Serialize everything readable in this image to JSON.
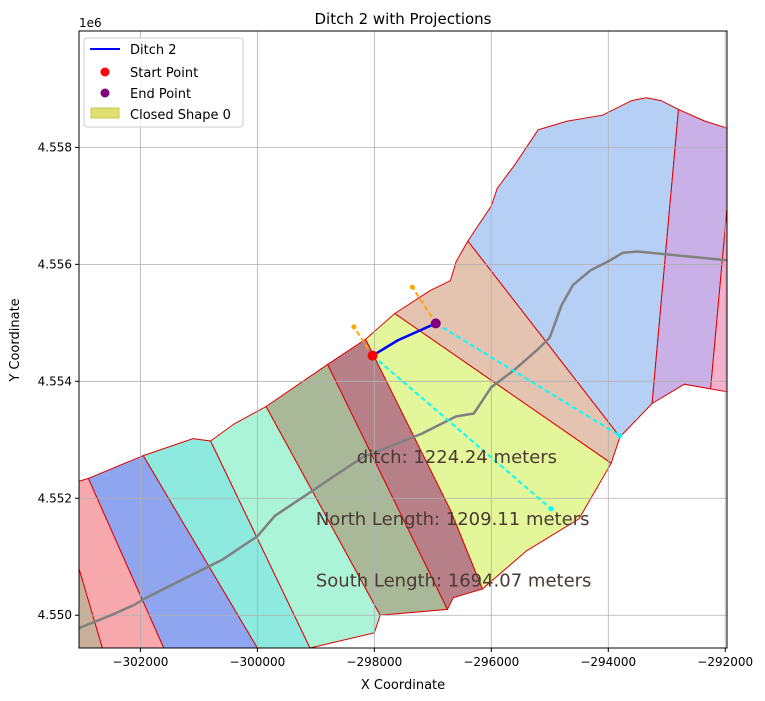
{
  "chart_data": {
    "type": "line",
    "title": "Ditch 2 with Projections",
    "xlabel": "X Coordinate",
    "ylabel": "Y Coordinate",
    "y_offset_label": "1e6",
    "xlim": [
      -303050,
      -291970
    ],
    "ylim": [
      4549440,
      4559990
    ],
    "x_ticks": [
      {
        "value": -302000,
        "label": "−302000"
      },
      {
        "value": -300000,
        "label": "−300000"
      },
      {
        "value": -298000,
        "label": "−298000"
      },
      {
        "value": -296000,
        "label": "−296000"
      },
      {
        "value": -294000,
        "label": "−294000"
      },
      {
        "value": -292000,
        "label": "−292000"
      }
    ],
    "y_ticks": [
      {
        "value": 4550000,
        "label": "4.550"
      },
      {
        "value": 4552000,
        "label": "4.552"
      },
      {
        "value": 4554000,
        "label": "4.554"
      },
      {
        "value": 4556000,
        "label": "4.556"
      },
      {
        "value": 4558000,
        "label": "4.558"
      }
    ],
    "grid": true,
    "legend_position": "top-left",
    "legend": [
      {
        "label": "Ditch 2",
        "kind": "line",
        "color": "#0000ff"
      },
      {
        "label": "Start Point",
        "kind": "point",
        "color": "#ff0000"
      },
      {
        "label": "End Point",
        "kind": "point",
        "color": "#800080"
      },
      {
        "label": "Closed Shape 0",
        "kind": "patch",
        "color": "#e0e070"
      }
    ],
    "regions": [
      {
        "id": "region-a",
        "color": "#c8b09a",
        "points": [
          [
            -303050,
            4550800
          ],
          [
            -302650,
            4549440
          ],
          [
            -303050,
            4549440
          ]
        ]
      },
      {
        "id": "region-b",
        "color": "#f7a8ad",
        "points": [
          [
            -303050,
            4552290
          ],
          [
            -302890,
            4552340
          ],
          [
            -301600,
            4549440
          ],
          [
            -302650,
            4549440
          ],
          [
            -303050,
            4550800
          ]
        ]
      },
      {
        "id": "region-c",
        "color": "#8fa5ef",
        "points": [
          [
            -302890,
            4552340
          ],
          [
            -301950,
            4552730
          ],
          [
            -300000,
            4549440
          ],
          [
            -301600,
            4549440
          ]
        ]
      },
      {
        "id": "region-d",
        "color": "#8eeadf",
        "points": [
          [
            -301950,
            4552730
          ],
          [
            -301100,
            4553020
          ],
          [
            -300800,
            4552980
          ],
          [
            -299100,
            4549440
          ],
          [
            -300000,
            4549440
          ]
        ]
      },
      {
        "id": "region-e",
        "color": "#acf4d8",
        "points": [
          [
            -300800,
            4552980
          ],
          [
            -300400,
            4553270
          ],
          [
            -299850,
            4553570
          ],
          [
            -297900,
            4550000
          ],
          [
            -298000,
            4549700
          ],
          [
            -299100,
            4549440
          ]
        ]
      },
      {
        "id": "region-f",
        "color": "#a8b898",
        "points": [
          [
            -299850,
            4553570
          ],
          [
            -298800,
            4554290
          ],
          [
            -296750,
            4550100
          ],
          [
            -297900,
            4550000
          ]
        ]
      },
      {
        "id": "region-g",
        "color": "#b77f88",
        "points": [
          [
            -298800,
            4554290
          ],
          [
            -298150,
            4554720
          ],
          [
            -296700,
            4551800
          ],
          [
            -296150,
            4550450
          ],
          [
            -296650,
            4550300
          ],
          [
            -296750,
            4550100
          ]
        ]
      },
      {
        "id": "region-h",
        "color": "#e3f79a",
        "points": [
          [
            -298150,
            4554720
          ],
          [
            -297650,
            4555160
          ],
          [
            -293950,
            4552600
          ],
          [
            -294500,
            4551650
          ],
          [
            -295400,
            4551100
          ],
          [
            -296150,
            4550450
          ],
          [
            -296700,
            4551800
          ]
        ]
      },
      {
        "id": "region-i",
        "color": "#e4c3b0",
        "points": [
          [
            -297650,
            4555160
          ],
          [
            -297050,
            4555550
          ],
          [
            -296700,
            4555720
          ],
          [
            -296600,
            4556050
          ],
          [
            -296400,
            4556400
          ],
          [
            -293800,
            4553050
          ],
          [
            -293950,
            4552600
          ]
        ]
      },
      {
        "id": "region-j",
        "color": "#b6d0f5",
        "points": [
          [
            -296400,
            4556400
          ],
          [
            -296000,
            4557000
          ],
          [
            -295900,
            4557300
          ],
          [
            -295600,
            4557700
          ],
          [
            -295200,
            4558300
          ],
          [
            -294700,
            4558450
          ],
          [
            -294100,
            4558550
          ],
          [
            -293600,
            4558800
          ],
          [
            -293350,
            4558850
          ],
          [
            -293100,
            4558800
          ],
          [
            -292800,
            4558650
          ],
          [
            -293250,
            4553620
          ],
          [
            -293800,
            4553050
          ]
        ]
      },
      {
        "id": "region-k",
        "color": "#c9b0e6",
        "points": [
          [
            -292800,
            4558650
          ],
          [
            -292350,
            4558450
          ],
          [
            -291970,
            4558330
          ],
          [
            -291970,
            4556950
          ],
          [
            -292250,
            4553870
          ],
          [
            -292700,
            4553950
          ],
          [
            -293250,
            4553620
          ]
        ]
      },
      {
        "id": "region-l",
        "color": "#f5b0cd",
        "points": [
          [
            -291970,
            4556950
          ],
          [
            -292250,
            4553870
          ],
          [
            -291970,
            4553820
          ]
        ]
      }
    ],
    "road": [
      [
        -303050,
        4549780
      ],
      [
        -302500,
        4550000
      ],
      [
        -302100,
        4550180
      ],
      [
        -301900,
        4550300
      ],
      [
        -301500,
        4550500
      ],
      [
        -301100,
        4550700
      ],
      [
        -300600,
        4550950
      ],
      [
        -300000,
        4551350
      ],
      [
        -299700,
        4551700
      ],
      [
        -299100,
        4552100
      ],
      [
        -298700,
        4552370
      ],
      [
        -298200,
        4552700
      ],
      [
        -297700,
        4552900
      ],
      [
        -297200,
        4553100
      ],
      [
        -296800,
        4553300
      ],
      [
        -296600,
        4553400
      ],
      [
        -296300,
        4553450
      ],
      [
        -296000,
        4553900
      ],
      [
        -295600,
        4554200
      ],
      [
        -295200,
        4554550
      ],
      [
        -295000,
        4554750
      ],
      [
        -294800,
        4555300
      ],
      [
        -294600,
        4555650
      ],
      [
        -294300,
        4555900
      ],
      [
        -294000,
        4556050
      ],
      [
        -293750,
        4556200
      ],
      [
        -293500,
        4556220
      ],
      [
        -291970,
        4556070
      ]
    ],
    "ditch": [
      [
        -298030,
        4554440
      ],
      [
        -297600,
        4554700
      ],
      [
        -296950,
        4554990
      ]
    ],
    "start_point": [
      -298030,
      4554440
    ],
    "end_point": [
      -296950,
      4554990
    ],
    "projections": [
      {
        "kind": "orange",
        "points": [
          [
            -298030,
            4554440
          ],
          [
            -298350,
            4554930
          ]
        ]
      },
      {
        "kind": "orange",
        "points": [
          [
            -296950,
            4554990
          ],
          [
            -297350,
            4555610
          ]
        ]
      },
      {
        "kind": "cyan",
        "points": [
          [
            -298030,
            4554440
          ],
          [
            -294980,
            4551820
          ]
        ]
      },
      {
        "kind": "cyan",
        "points": [
          [
            -296950,
            4554990
          ],
          [
            -293800,
            4553070
          ]
        ]
      }
    ],
    "annotations": [
      {
        "label": "ditch: 1224.24 meters",
        "x": -298300,
        "y": 4552600
      },
      {
        "label": "North Length: 1209.11 meters",
        "x": -299000,
        "y": 4551540
      },
      {
        "label": "South Length: 1694.07 meters",
        "x": -299000,
        "y": 4550490
      }
    ]
  }
}
